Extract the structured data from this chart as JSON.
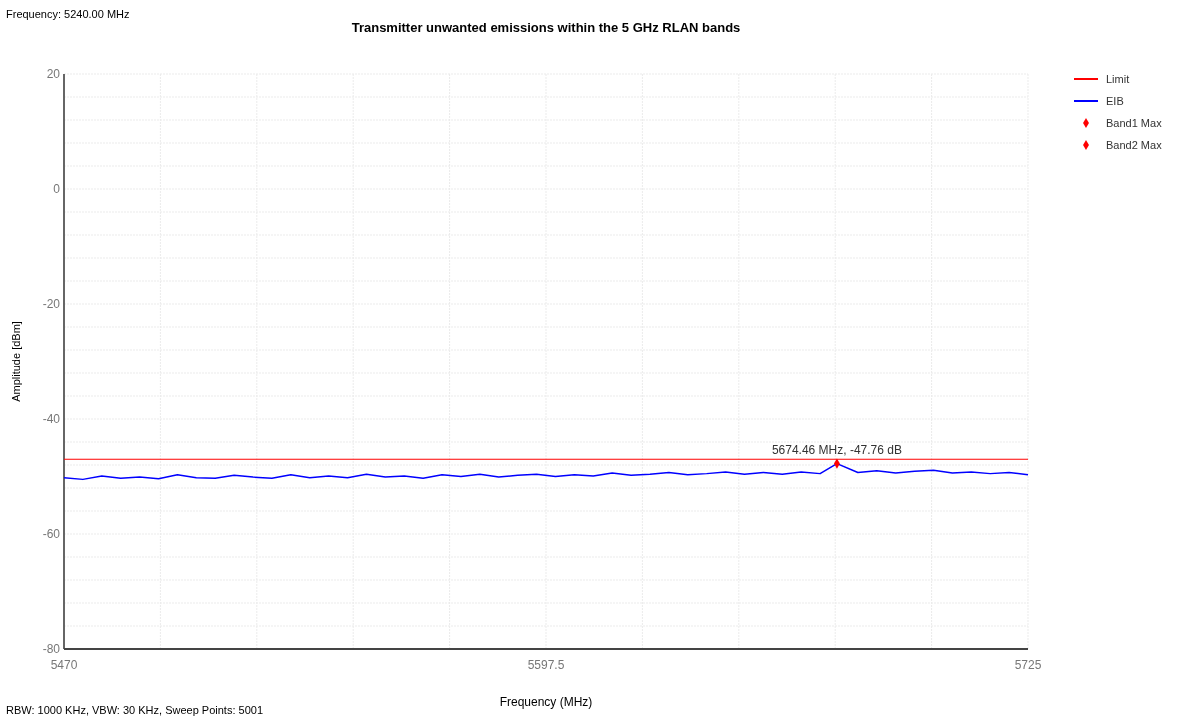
{
  "chart_data": {
    "type": "line",
    "title": "Transmitter unwanted emissions within the 5 GHz RLAN bands",
    "xlabel": "Frequency (MHz)",
    "ylabel": "Amplitude [dBm]",
    "annotations": [
      "Frequency: 5240.00 MHz",
      "RBW: 1000 KHz,  VBW: 30 KHz,  Sweep Points: 5001",
      {
        "text": "5674.46 MHz, -47.76 dB",
        "x": 5674.46,
        "y": -47.76
      }
    ],
    "xlim": [
      5470,
      5725
    ],
    "ylim": [
      -80,
      20
    ],
    "xticks": [
      5470,
      {
        "value": 5495.5,
        "label": null
      },
      {
        "value": 5521,
        "label": null
      },
      {
        "value": 5546.5,
        "label": null
      },
      {
        "value": 5572,
        "label": null
      },
      5597.5,
      {
        "value": 5623,
        "label": null
      },
      {
        "value": 5648.5,
        "label": null
      },
      {
        "value": 5674,
        "label": null
      },
      {
        "value": 5699.5,
        "label": null
      },
      5725
    ],
    "yticks": [
      -80,
      {
        "value": -76,
        "label": null
      },
      {
        "value": -72,
        "label": null
      },
      {
        "value": -68,
        "label": null
      },
      {
        "value": -64,
        "label": null
      },
      -60,
      {
        "value": -56,
        "label": null
      },
      {
        "value": -52,
        "label": null
      },
      {
        "value": -48,
        "label": null
      },
      {
        "value": -44,
        "label": null
      },
      -40,
      {
        "value": -36,
        "label": null
      },
      {
        "value": -32,
        "label": null
      },
      {
        "value": -28,
        "label": null
      },
      {
        "value": -24,
        "label": null
      },
      -20,
      {
        "value": -16,
        "label": null
      },
      {
        "value": -12,
        "label": null
      },
      {
        "value": -8,
        "label": null
      },
      {
        "value": -4,
        "label": null
      },
      0,
      {
        "value": 4,
        "label": null
      },
      {
        "value": 8,
        "label": null
      },
      {
        "value": 12,
        "label": null
      },
      {
        "value": 16,
        "label": null
      },
      20
    ],
    "grid": true,
    "legend": "top right",
    "line_style": "solid",
    "series": [
      {
        "name": "Limit",
        "color": "#ff0000",
        "x": [
          5470,
          5725
        ],
        "values": [
          -47,
          -47
        ]
      },
      {
        "name": "EIB",
        "color": "#0000ff",
        "x": [
          5470,
          5475,
          5480,
          5485,
          5490,
          5495,
          5500,
          5505,
          5510,
          5515,
          5520,
          5525,
          5530,
          5535,
          5540,
          5545,
          5550,
          5555,
          5560,
          5565,
          5570,
          5575,
          5580,
          5585,
          5590,
          5595,
          5600,
          5605,
          5610,
          5615,
          5620,
          5625,
          5630,
          5635,
          5640,
          5645,
          5650,
          5655,
          5660,
          5665,
          5670,
          5674.46,
          5680,
          5685,
          5690,
          5695,
          5700,
          5705,
          5710,
          5715,
          5720,
          5725
        ],
        "values": [
          -50.2,
          -50.5,
          -49.9,
          -50.3,
          -50.1,
          -50.4,
          -49.7,
          -50.2,
          -50.3,
          -49.8,
          -50.1,
          -50.3,
          -49.7,
          -50.2,
          -49.9,
          -50.2,
          -49.6,
          -50.1,
          -49.9,
          -50.3,
          -49.7,
          -50.0,
          -49.6,
          -50.1,
          -49.8,
          -49.6,
          -50.0,
          -49.7,
          -49.9,
          -49.4,
          -49.8,
          -49.6,
          -49.3,
          -49.7,
          -49.5,
          -49.2,
          -49.6,
          -49.3,
          -49.6,
          -49.2,
          -49.5,
          -47.76,
          -49.3,
          -49.0,
          -49.4,
          -49.1,
          -48.9,
          -49.4,
          -49.2,
          -49.5,
          -49.3,
          -49.7
        ]
      },
      {
        "name": "Band1 Max",
        "color": "#ff0000",
        "type": "scatter",
        "marker": "diamond",
        "x": [
          5674.46
        ],
        "values": [
          -47.76
        ]
      },
      {
        "name": "Band2 Max",
        "color": "#ff0000",
        "type": "scatter",
        "marker": "diamond"
      }
    ]
  }
}
